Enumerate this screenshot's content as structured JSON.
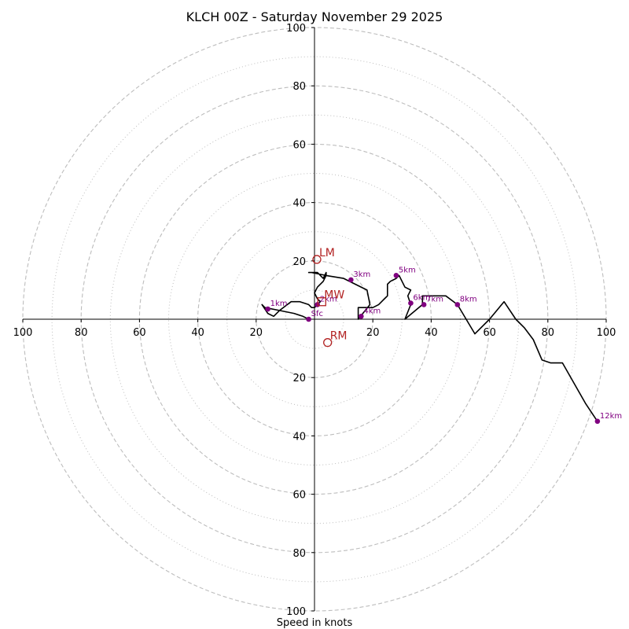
{
  "chart_data": {
    "type": "hodograph",
    "title": "KLCH 00Z - Saturday November 29 2025",
    "xlabel": "Speed in knots",
    "max_speed": 100,
    "ring_major": [
      20,
      40,
      60,
      80,
      100
    ],
    "ring_minor": [
      10,
      30,
      50,
      70,
      90
    ],
    "tick_values": [
      20,
      40,
      60,
      80,
      100
    ],
    "x_tick_labels": [
      "100",
      "80",
      "60",
      "40",
      "20",
      "20",
      "40",
      "60",
      "80",
      "100"
    ],
    "y_tick_labels": [
      "100",
      "80",
      "60",
      "40",
      "20",
      "20",
      "40",
      "60",
      "80",
      "100"
    ],
    "colors": {
      "profile": "#000000",
      "height_marker": "#800080",
      "motion": "#b22222",
      "grid": "#bdbdbd"
    },
    "profile": {
      "u": [
        -2,
        -4,
        -7,
        -12,
        -17,
        -18,
        -16,
        -14,
        -12,
        -8,
        -5,
        -2,
        -1,
        0,
        1,
        2,
        1,
        0,
        1,
        3,
        4,
        4,
        3,
        1,
        -2,
        -1,
        4,
        10,
        14,
        18,
        19,
        15,
        15,
        20,
        22,
        24,
        25,
        25,
        26,
        28,
        29,
        31,
        33,
        32,
        33,
        31,
        37,
        37,
        42,
        45,
        49,
        52,
        55,
        60,
        65,
        69,
        72,
        75,
        78,
        81,
        85,
        89,
        93,
        97
      ],
      "v": [
        0,
        1,
        2,
        3,
        4,
        5,
        2,
        1,
        3,
        6,
        6,
        5,
        4,
        4,
        5,
        6,
        7,
        9,
        11,
        13,
        15,
        16,
        14,
        16,
        16,
        16,
        15,
        14,
        12,
        10,
        5,
        0,
        4,
        4,
        5,
        7,
        8,
        12,
        13,
        14,
        15,
        11,
        10,
        8,
        5,
        0,
        5,
        8,
        8,
        8,
        5,
        0,
        -5,
        0,
        6,
        0,
        -3,
        -7,
        -14,
        -15,
        -15,
        -22,
        -29,
        -35
      ]
    },
    "height_markers": [
      {
        "label": "Sfc",
        "u": -2,
        "v": 0
      },
      {
        "label": "1km",
        "u": -16,
        "v": 3.5
      },
      {
        "label": "2km",
        "u": 1,
        "v": 5
      },
      {
        "label": "3km",
        "u": 12.5,
        "v": 13.5
      },
      {
        "label": "4km",
        "u": 16,
        "v": 1
      },
      {
        "label": "5km",
        "u": 28,
        "v": 15
      },
      {
        "label": "6km",
        "u": 33,
        "v": 5.5
      },
      {
        "label": "7km",
        "u": 37.5,
        "v": 5
      },
      {
        "label": "8km",
        "u": 49,
        "v": 5
      },
      {
        "label": "12km",
        "u": 97,
        "v": -35
      }
    ],
    "storm_motion": [
      {
        "label": "LM",
        "u": 0.8,
        "v": 20.5,
        "marker": "circle"
      },
      {
        "label": "MW",
        "u": 2.5,
        "v": 6,
        "marker": "square"
      },
      {
        "label": "RM",
        "u": 4.5,
        "v": -8,
        "marker": "circle"
      }
    ]
  }
}
